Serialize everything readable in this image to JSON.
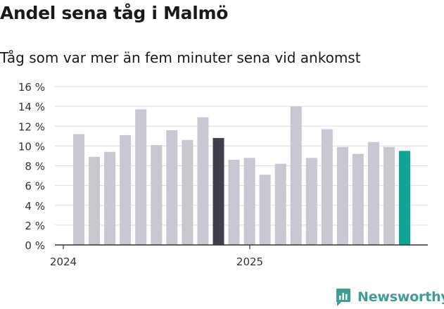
{
  "title": "Andel sena tåg i Malmö",
  "subtitle": "Tåg som var mer än fem minuter sena vid ankomst",
  "brand": "Newsworthy",
  "colors": {
    "bar_default": "#c8c7d2",
    "bar_highlight_dark": "#403f4c",
    "bar_highlight_latest": "#0fa697",
    "brand": "#3f9e93"
  },
  "chart_data": {
    "type": "bar",
    "title": "Andel sena tåg i Malmö",
    "subtitle": "Tåg som var mer än fem minuter sena vid ankomst",
    "x_ticks": [
      "2024",
      "2025"
    ],
    "y_ticks": [
      "0 %",
      "2 %",
      "4 %",
      "6 %",
      "8 %",
      "10 %",
      "12 %",
      "14 %",
      "16 %"
    ],
    "ylim": [
      0,
      16
    ],
    "grid": true,
    "legend": "none",
    "values": [
      11.2,
      8.9,
      9.4,
      11.1,
      13.7,
      10.1,
      11.6,
      10.6,
      12.9,
      10.8,
      8.6,
      8.8,
      7.1,
      8.2,
      14.0,
      8.8,
      11.7,
      9.9,
      9.2,
      10.4,
      9.9,
      9.5
    ],
    "highlight": {
      "9": "dark",
      "21": "latest"
    }
  }
}
